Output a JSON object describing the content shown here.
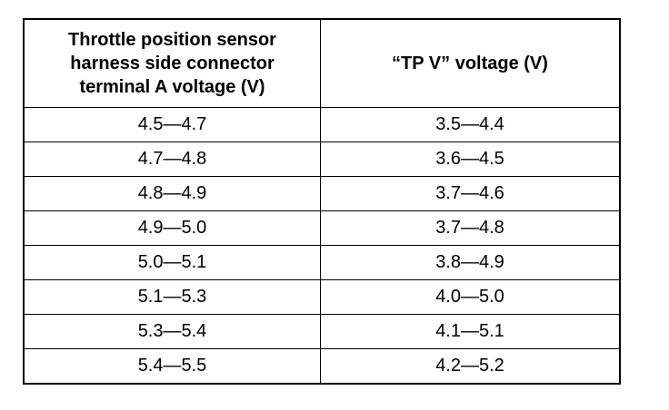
{
  "table": {
    "header": [
      [
        "Throttle position sensor",
        "harness side connector",
        "terminal A voltage (V)"
      ],
      [
        "“TP V” voltage (V)"
      ]
    ],
    "rows": [
      [
        "4.5—4.7",
        "3.5—4.4"
      ],
      [
        "4.7—4.8",
        "3.6—4.5"
      ],
      [
        "4.8—4.9",
        "3.7—4.6"
      ],
      [
        "4.9—5.0",
        "3.7—4.8"
      ],
      [
        "5.0—5.1",
        "3.8—4.9"
      ],
      [
        "5.1—5.3",
        "4.0—5.0"
      ],
      [
        "5.3—5.4",
        "4.1—5.1"
      ],
      [
        "5.4—5.5",
        "4.2—5.2"
      ]
    ]
  }
}
